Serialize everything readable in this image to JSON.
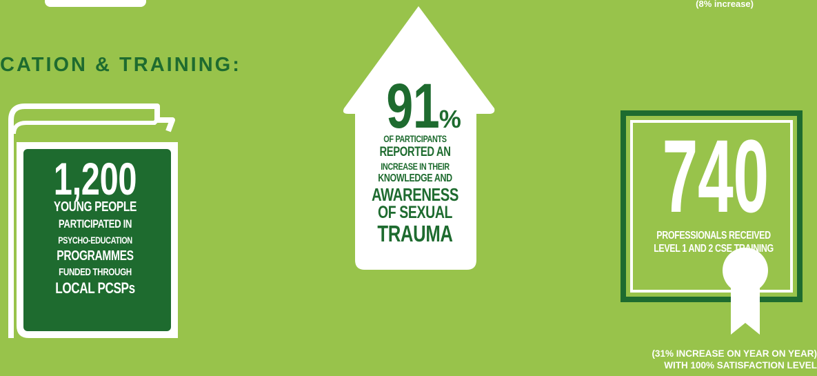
{
  "top": {
    "increase": "(8% increase)"
  },
  "heading": "CATION & TRAINING:",
  "book": {
    "number": "1,200",
    "lines": [
      "YOUNG PEOPLE",
      "PARTICIPATED IN",
      "PSYCHO-EDUCATION",
      "PROGRAMMES",
      "FUNDED THROUGH",
      "LOCAL PCSPs"
    ]
  },
  "house": {
    "number": "91",
    "percent": "%",
    "lines": [
      "OF PARTICIPANTS",
      "REPORTED AN",
      "INCREASE IN THEIR",
      "KNOWLEDGE AND",
      "AWARENESS",
      "OF SEXUAL",
      "TRAUMA"
    ]
  },
  "certificate": {
    "number": "740",
    "lines": [
      "PROFESSIONALS RECEIVED",
      "LEVEL 1 AND 2 CSE TRAINING"
    ],
    "caption": [
      "(31% INCREASE ON YEAR ON YEAR)",
      "WITH 100% SATISFACTION LEVEL"
    ]
  },
  "colors": {
    "background": "#98c34b",
    "dark_green": "#1e6b2f",
    "white": "#ffffff"
  }
}
